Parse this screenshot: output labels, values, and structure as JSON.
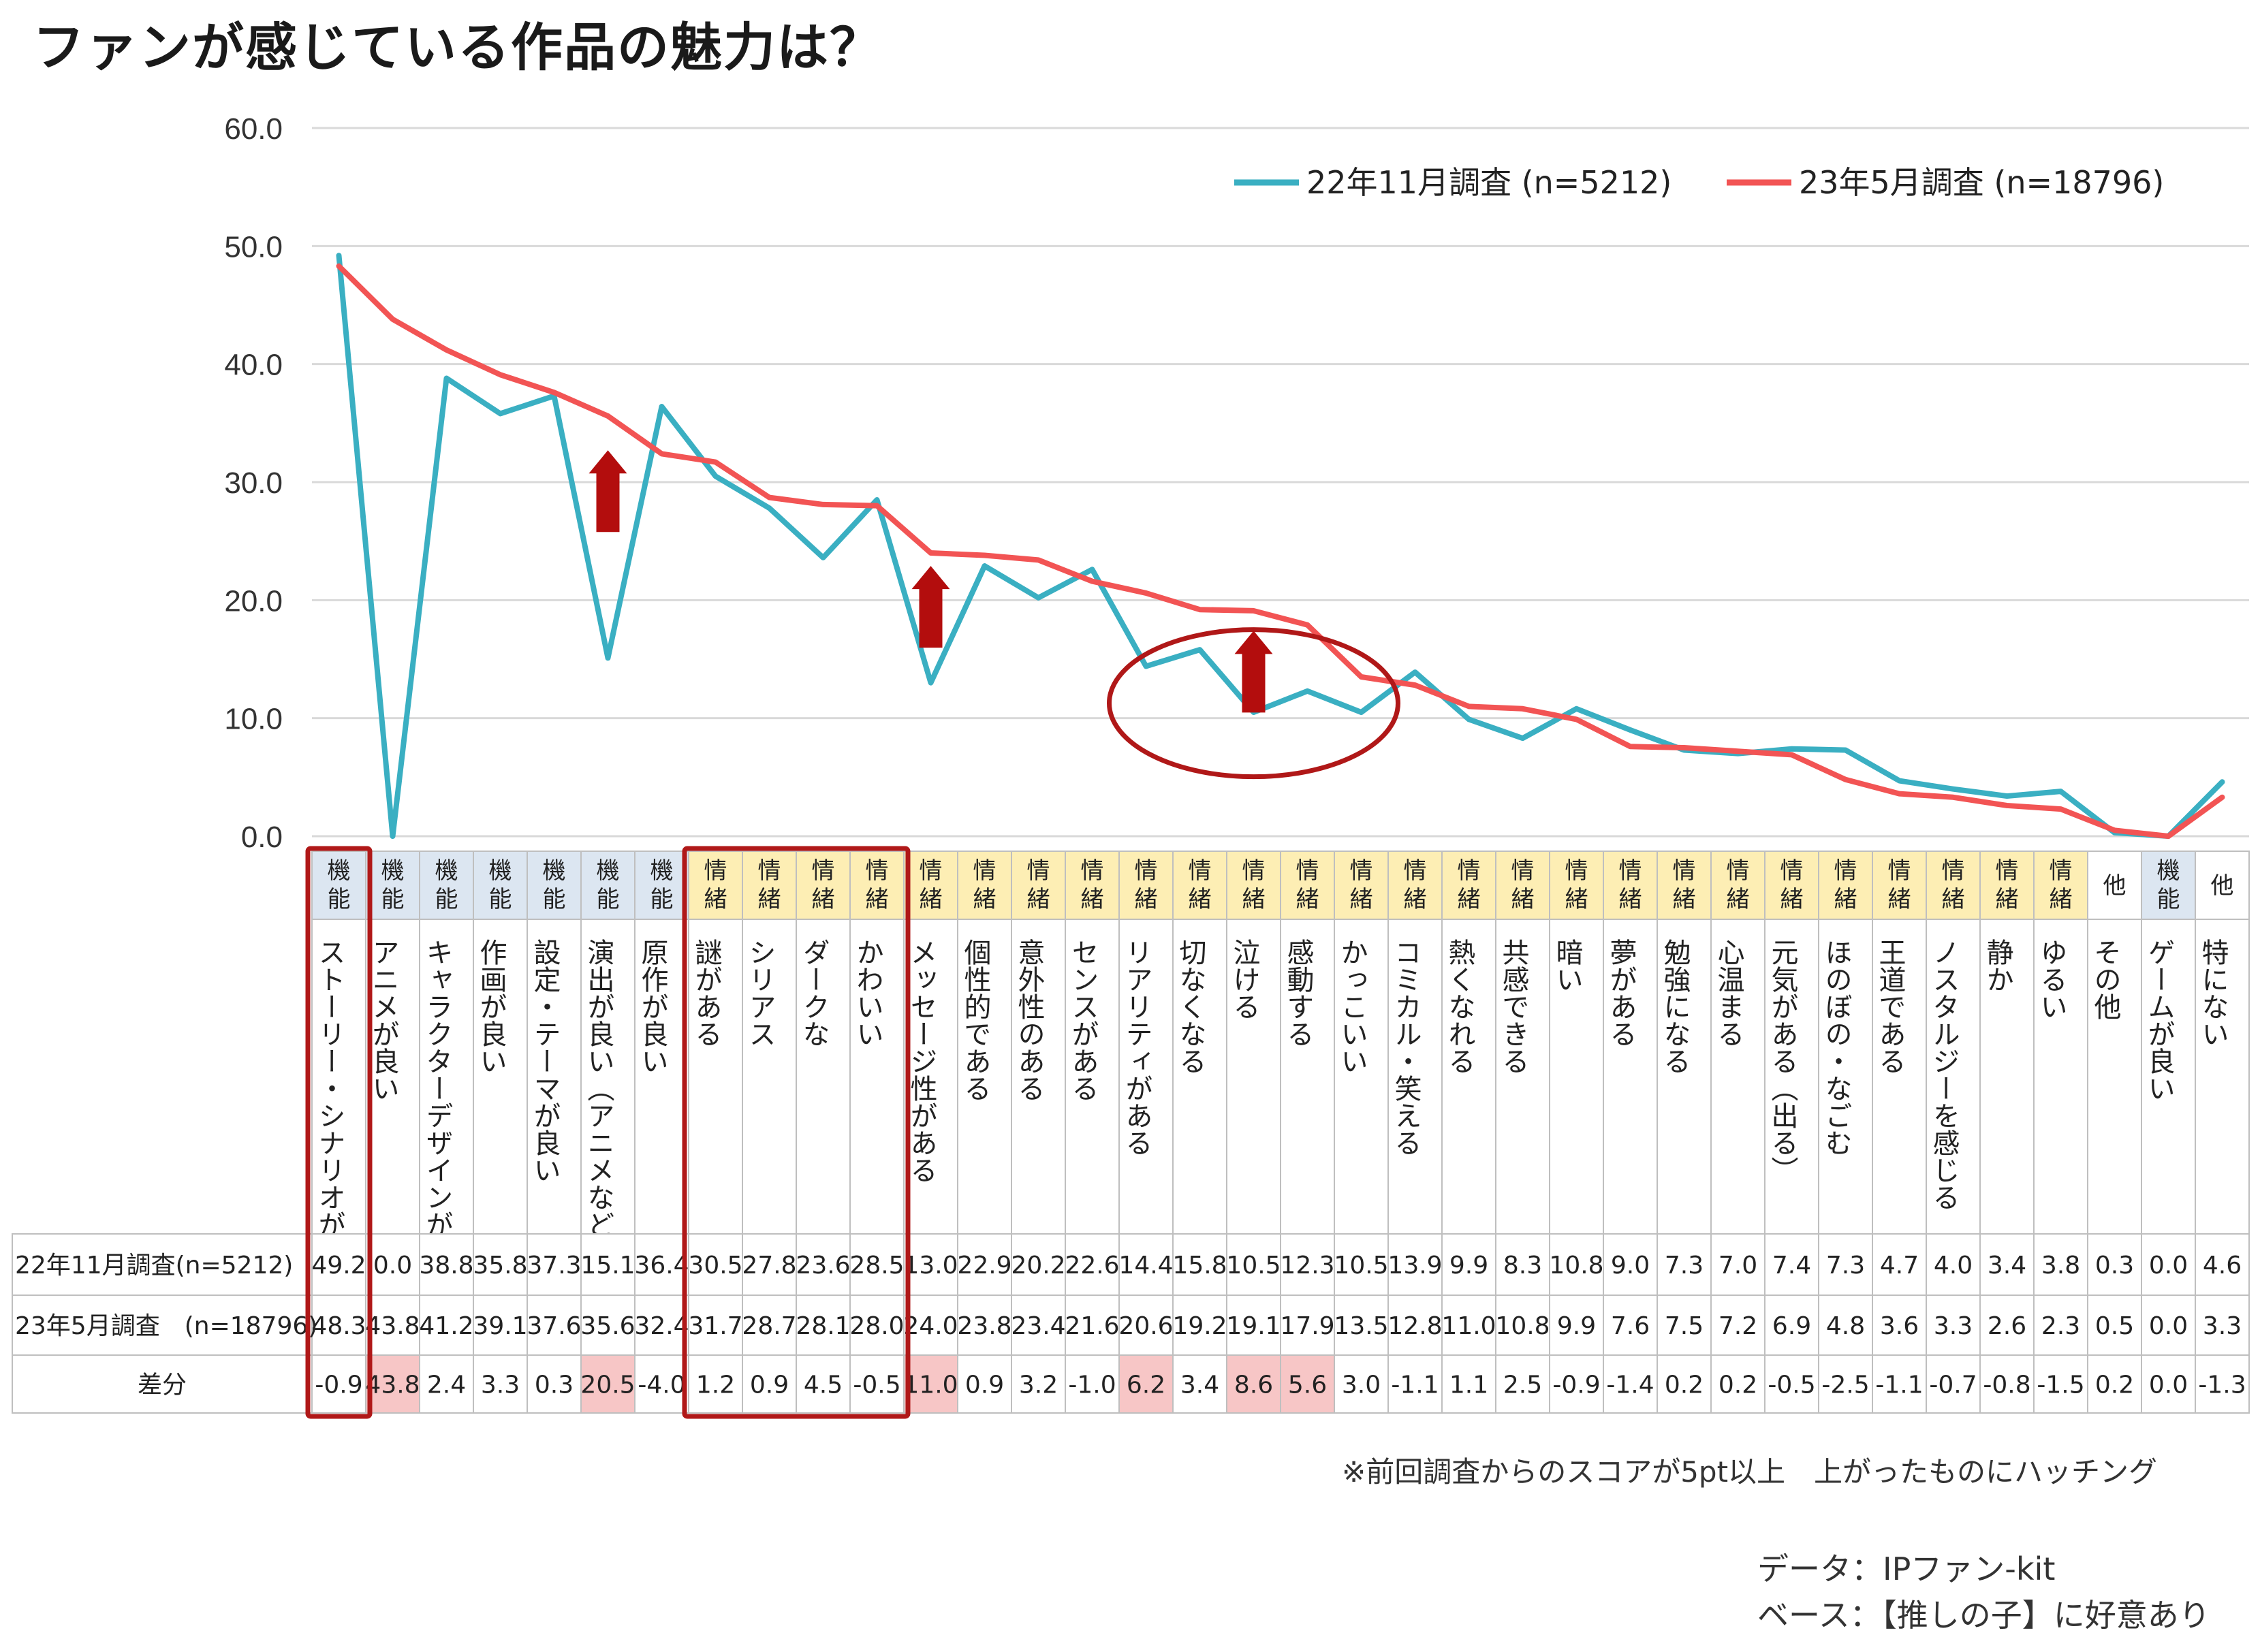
{
  "title": "ファンが感じている作品の魅力は？",
  "chart_data": {
    "type": "line",
    "y_ticks": [
      "0.0",
      "10.0",
      "20.0",
      "30.0",
      "40.0",
      "50.0",
      "60.0"
    ],
    "ylim": [
      0,
      60
    ],
    "grid": true,
    "legend_position": "top-right",
    "categories": [
      "ストーリー・シナリオが良い",
      "アニメが良い",
      "キャラクターデザインが良い",
      "作画が良い",
      "設定・テーマが良い",
      "演出が良い（アニメなどの映像含む）",
      "原作が良い",
      "謎がある",
      "シリアス",
      "ダークな",
      "かわいい",
      "メッセージ性がある",
      "個性的である",
      "意外性のある",
      "センスがある",
      "リアリティがある",
      "切なくなる",
      "泣ける",
      "感動する",
      "かっこいい",
      "コミカル・笑える",
      "熱くなれる",
      "共感できる",
      "暗い",
      "夢がある",
      "勉強になる",
      "心温まる",
      "元気がある（出る）",
      "ほのぼの・なごむ",
      "王道である",
      "ノスタルジーを感じる",
      "静か",
      "ゆるい",
      "その他",
      "ゲームが良い",
      "特にない"
    ],
    "category_groups": [
      "機能",
      "機能",
      "機能",
      "機能",
      "機能",
      "機能",
      "機能",
      "情緒",
      "情緒",
      "情緒",
      "情緒",
      "情緒",
      "情緒",
      "情緒",
      "情緒",
      "情緒",
      "情緒",
      "情緒",
      "情緒",
      "情緒",
      "情緒",
      "情緒",
      "情緒",
      "情緒",
      "情緒",
      "情緒",
      "情緒",
      "情緒",
      "情緒",
      "情緒",
      "情緒",
      "情緒",
      "情緒",
      "他",
      "機能",
      "他"
    ],
    "series": [
      {
        "name": "22年11月調査 (n=5212)",
        "row_label": "22年11月調査(n=5212)",
        "color": "#3aafc2",
        "values": [
          49.2,
          0.0,
          38.8,
          35.8,
          37.3,
          15.1,
          36.4,
          30.5,
          27.8,
          23.6,
          28.5,
          13.0,
          22.9,
          20.2,
          22.6,
          14.4,
          15.8,
          10.5,
          12.3,
          10.5,
          13.9,
          9.9,
          8.3,
          10.8,
          9.0,
          7.3,
          7.0,
          7.4,
          7.3,
          4.7,
          4.0,
          3.4,
          3.8,
          0.3,
          0.0,
          4.6
        ]
      },
      {
        "name": "23年5月調査 (n=18796)",
        "row_label": "23年5月調査　(n=18796)",
        "color": "#f25454",
        "values": [
          48.3,
          43.8,
          41.2,
          39.1,
          37.6,
          35.6,
          32.4,
          31.7,
          28.7,
          28.1,
          28.0,
          24.0,
          23.8,
          23.4,
          21.6,
          20.6,
          19.2,
          19.1,
          17.9,
          13.5,
          12.8,
          11.0,
          10.8,
          9.9,
          7.6,
          7.5,
          7.2,
          6.9,
          4.8,
          3.6,
          3.3,
          2.6,
          2.3,
          0.5,
          0.0,
          3.3
        ]
      }
    ],
    "diff_label": "差分",
    "diff": [
      -0.9,
      43.8,
      2.4,
      3.3,
      0.3,
      20.5,
      -4.0,
      1.2,
      0.9,
      4.5,
      -0.5,
      11.0,
      0.9,
      3.2,
      -1.0,
      6.2,
      3.4,
      8.6,
      5.6,
      3.0,
      -1.1,
      1.1,
      2.5,
      -0.9,
      -1.4,
      0.2,
      0.2,
      -0.5,
      -2.5,
      -1.1,
      -0.7,
      -0.8,
      -1.5,
      0.2,
      0.0,
      -1.3
    ],
    "highlight_threshold": 5,
    "colors": {
      "functional_header": "#dce6f1",
      "emotional_header": "#fdeeb4",
      "other_header": "#ffffff",
      "highlight_cell": "#f7c6c6",
      "annotation_box": "#b01818",
      "arrow": "#b30d0d",
      "grid": "#d9d9d9"
    }
  },
  "footnote": "※前回調査からのスコアが5pt以上　上がったものにハッチング",
  "source": "データ：IPファン-kit",
  "base": "ベース：【推しの子】に好意あり"
}
